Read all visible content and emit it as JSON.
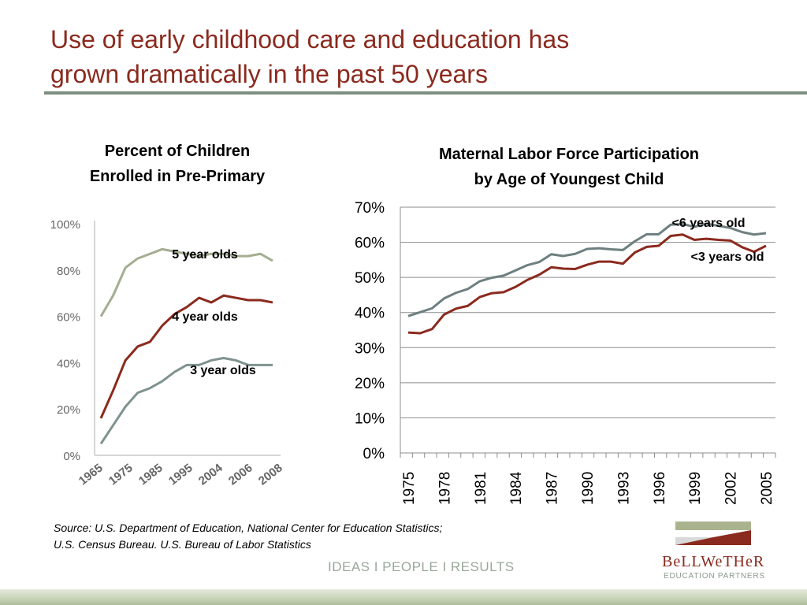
{
  "slide": {
    "title_line1": "Use of early childhood care and education has",
    "title_line2": "grown dramatically in the past 50 years",
    "source_line1": "Source:  U.S. Department of Education, National Center for Education Statistics;",
    "source_line2": "U.S. Census Bureau. U.S. Bureau of Labor Statistics",
    "tagline": "IDEAS  I  PEOPLE  I  RESULTS",
    "logo_word": "BeLLWeTHeR",
    "logo_sub": "EDUCATION PARTNERS",
    "colors": {
      "title": "#8b2a1e",
      "rule": "#7e8f82",
      "green_series": "#a3ad91",
      "red_series": "#8b2a1e",
      "slate_series": "#7f9290",
      "mlf_gray": "#6e7f80",
      "tagline": "#98a89a"
    }
  },
  "chart_data": [
    {
      "type": "line",
      "title_line1": "Percent of Children",
      "title_line2": "Enrolled in Pre-Primary",
      "categories": [
        "1965",
        "1975",
        "1985",
        "1995",
        "2004",
        "2006",
        "2008"
      ],
      "x": [
        1965,
        1967,
        1969,
        1971,
        1973,
        1975,
        1977,
        1979,
        1981,
        1983,
        1985,
        1987,
        1989,
        1991,
        1993
      ],
      "yticks": [
        "0%",
        "20%",
        "40%",
        "60%",
        "80%",
        "100%"
      ],
      "ylim": [
        0,
        100
      ],
      "grid": false,
      "series": [
        {
          "name": "5 year olds",
          "values": [
            60,
            69,
            81,
            85,
            87,
            89,
            88,
            87,
            86,
            87,
            87,
            86,
            86,
            87,
            84
          ]
        },
        {
          "name": "4 year olds",
          "values": [
            16,
            28,
            41,
            47,
            49,
            56,
            61,
            64,
            68,
            66,
            69,
            68,
            67,
            67,
            66
          ]
        },
        {
          "name": "3 year olds",
          "values": [
            5,
            13,
            21,
            27,
            29,
            32,
            36,
            39,
            39,
            41,
            42,
            41,
            39,
            39,
            39
          ]
        }
      ]
    },
    {
      "type": "line",
      "title_line1": "Maternal Labor Force Participation",
      "title_line2": "by Age of Youngest Child",
      "x": [
        1975,
        1976,
        1977,
        1978,
        1979,
        1980,
        1981,
        1982,
        1983,
        1984,
        1985,
        1986,
        1987,
        1988,
        1989,
        1990,
        1991,
        1992,
        1993,
        1994,
        1995,
        1996,
        1997,
        1998,
        1999,
        2000,
        2001,
        2002,
        2003,
        2004,
        2005
      ],
      "xticks": [
        "1975",
        "1978",
        "1981",
        "1984",
        "1987",
        "1990",
        "1993",
        "1996",
        "1999",
        "2002",
        "2005"
      ],
      "yticks": [
        "0%",
        "10%",
        "20%",
        "30%",
        "40%",
        "50%",
        "60%",
        "70%"
      ],
      "ylim": [
        0,
        70
      ],
      "grid": true,
      "series": [
        {
          "name": "<6 years old",
          "values": [
            39.0,
            40.1,
            41.2,
            44.0,
            45.6,
            46.7,
            48.9,
            49.9,
            50.5,
            52.0,
            53.5,
            54.4,
            56.6,
            56.1,
            56.7,
            58.1,
            58.3,
            58.0,
            57.8,
            60.3,
            62.3,
            62.3,
            65.0,
            65.2,
            64.4,
            65.3,
            64.7,
            64.1,
            62.9,
            62.2,
            62.6
          ]
        },
        {
          "name": "<3 years old",
          "values": [
            34.3,
            34.1,
            35.3,
            39.4,
            41.1,
            41.9,
            44.4,
            45.5,
            45.8,
            47.3,
            49.3,
            50.8,
            52.9,
            52.5,
            52.4,
            53.6,
            54.5,
            54.5,
            53.9,
            57.1,
            58.7,
            59.0,
            61.8,
            62.2,
            60.7,
            61.0,
            60.7,
            60.5,
            58.6,
            57.3,
            59.0
          ]
        }
      ]
    }
  ]
}
